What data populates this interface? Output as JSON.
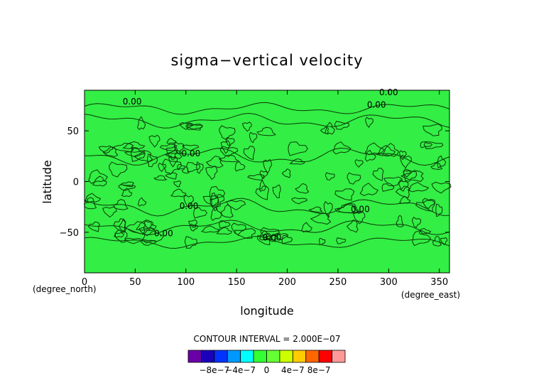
{
  "chart_data": {
    "type": "heatmap",
    "title": "sigma−vertical velocity",
    "xlabel": "longitude",
    "ylabel": "latitude",
    "x_unit": "(degree_east)",
    "y_unit": "(degree_north)",
    "xlim": [
      0,
      360
    ],
    "ylim": [
      -90,
      90
    ],
    "x_ticks": [
      0,
      50,
      100,
      150,
      200,
      250,
      300,
      350
    ],
    "y_ticks": [
      -50,
      0,
      50
    ],
    "x_tick_labels": [
      "0",
      "50",
      "100",
      "150",
      "200",
      "250",
      "300",
      "350"
    ],
    "y_tick_labels": [
      "−50",
      "0",
      "50"
    ],
    "contour_interval_text": "CONTOUR INTERVAL = 2.000E−07",
    "contour_labels": [
      {
        "text": "0.00",
        "x": 47,
        "y": 76
      },
      {
        "text": "0.00",
        "x": 300,
        "y": 85
      },
      {
        "text": "0.00",
        "x": 288,
        "y": 73
      },
      {
        "text": "0.00",
        "x": 105,
        "y": 25
      },
      {
        "text": "0.00",
        "x": 103,
        "y": -27
      },
      {
        "text": "0.00",
        "x": 272,
        "y": -30
      },
      {
        "text": "0.00",
        "x": 78,
        "y": -54
      },
      {
        "text": "0.00",
        "x": 185,
        "y": -58
      }
    ],
    "colorbar": {
      "colors": [
        "#6a00a8",
        "#1a00b8",
        "#0033ff",
        "#0099ff",
        "#00ffff",
        "#33ff33",
        "#66ff33",
        "#ccff00",
        "#ffcc00",
        "#ff6600",
        "#ff0000",
        "#ff9999"
      ],
      "tick_labels": [
        "−8e−7",
        "−4e−7",
        "0",
        "4e−7",
        "8e−7"
      ],
      "tick_values": [
        -8e-07,
        -4e-07,
        0,
        4e-07,
        8e-07
      ],
      "range": [
        -1.2e-06,
        1.2e-06
      ]
    },
    "field_color": "#33ee44",
    "grid": false
  }
}
